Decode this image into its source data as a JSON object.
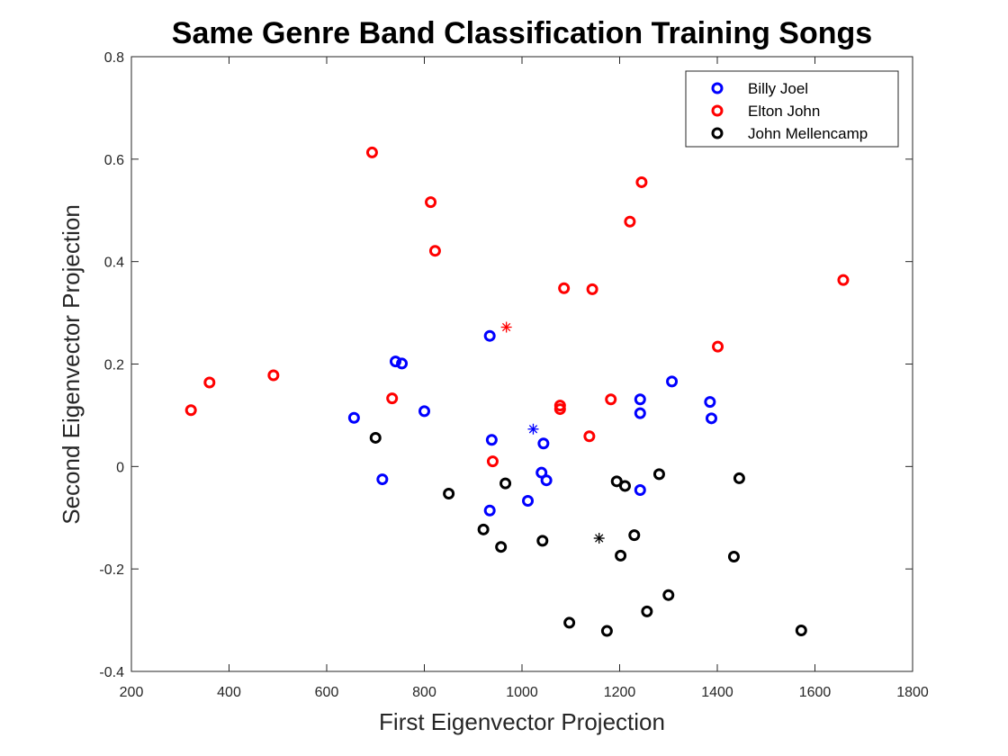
{
  "chart_data": {
    "type": "scatter",
    "title": "Same Genre Band Classification Training Songs",
    "xlabel": "First Eigenvector Projection",
    "ylabel": "Second Eigenvector Projection",
    "xlim": [
      200,
      1800
    ],
    "ylim": [
      -0.4,
      0.8
    ],
    "xticks": [
      200,
      400,
      600,
      800,
      1000,
      1200,
      1400,
      1600,
      1800
    ],
    "xtick_labels": [
      "200",
      "400",
      "600",
      "800",
      "1000",
      "1200",
      "1400",
      "1600",
      "1800"
    ],
    "yticks": [
      -0.4,
      -0.2,
      0,
      0.2,
      0.4,
      0.6,
      0.8
    ],
    "ytick_labels": [
      "-0.4",
      "-0.2",
      "0",
      "0.2",
      "0.4",
      "0.6",
      "0.8"
    ],
    "grid": false,
    "legend_position": "top-right",
    "series": [
      {
        "name": "Billy Joel",
        "color": "#0000ff",
        "marker": "circle",
        "points": [
          [
            656,
            0.095
          ],
          [
            714,
            -0.025
          ],
          [
            741,
            0.205
          ],
          [
            754,
            0.201
          ],
          [
            800,
            0.108
          ],
          [
            934,
            0.255
          ],
          [
            934,
            -0.086
          ],
          [
            938,
            0.052
          ],
          [
            1012,
            -0.067
          ],
          [
            1040,
            -0.012
          ],
          [
            1044,
            0.045
          ],
          [
            1050,
            -0.027
          ],
          [
            1242,
            0.131
          ],
          [
            1242,
            0.104
          ],
          [
            1242,
            -0.046
          ],
          [
            1307,
            0.166
          ],
          [
            1385,
            0.126
          ],
          [
            1388,
            0.094
          ]
        ],
        "centroid": [
          1023,
          0.073
        ]
      },
      {
        "name": "Elton John",
        "color": "#ff0000",
        "marker": "circle",
        "points": [
          [
            322,
            0.11
          ],
          [
            360,
            0.164
          ],
          [
            491,
            0.178
          ],
          [
            693,
            0.613
          ],
          [
            734,
            0.133
          ],
          [
            813,
            0.516
          ],
          [
            822,
            0.421
          ],
          [
            940,
            0.01
          ],
          [
            1078,
            0.119
          ],
          [
            1078,
            0.112
          ],
          [
            1086,
            0.348
          ],
          [
            1138,
            0.059
          ],
          [
            1144,
            0.346
          ],
          [
            1182,
            0.131
          ],
          [
            1221,
            0.478
          ],
          [
            1245,
            0.555
          ],
          [
            1401,
            0.234
          ],
          [
            1658,
            0.364
          ]
        ],
        "centroid": [
          968,
          0.272
        ]
      },
      {
        "name": "John Mellencamp",
        "color": "#000000",
        "marker": "circle",
        "points": [
          [
            700,
            0.056
          ],
          [
            850,
            -0.053
          ],
          [
            921,
            -0.123
          ],
          [
            957,
            -0.157
          ],
          [
            966,
            -0.033
          ],
          [
            1042,
            -0.145
          ],
          [
            1097,
            -0.305
          ],
          [
            1174,
            -0.321
          ],
          [
            1194,
            -0.029
          ],
          [
            1202,
            -0.174
          ],
          [
            1211,
            -0.038
          ],
          [
            1230,
            -0.134
          ],
          [
            1256,
            -0.283
          ],
          [
            1281,
            -0.015
          ],
          [
            1300,
            -0.251
          ],
          [
            1434,
            -0.176
          ],
          [
            1445,
            -0.023
          ],
          [
            1572,
            -0.32
          ]
        ],
        "centroid": [
          1158,
          -0.14
        ]
      }
    ]
  }
}
